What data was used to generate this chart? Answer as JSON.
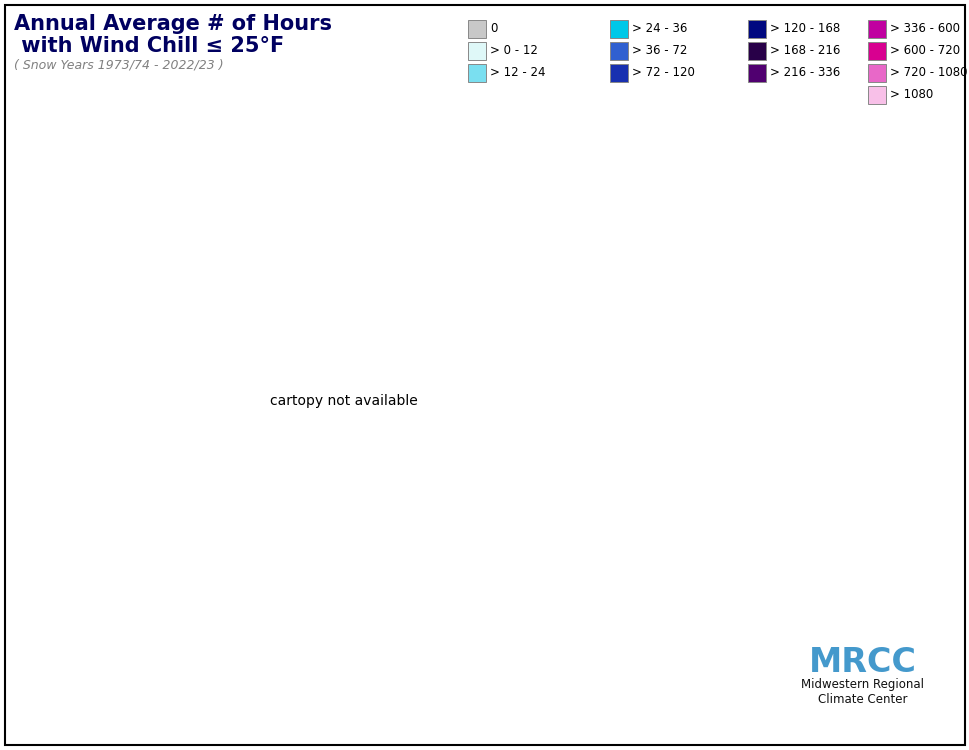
{
  "title_line1": "Annual Average # of Hours",
  "title_line2": " with Wind Chill ≤ 25°F",
  "title_sub": "( Snow Years 1973/74 - 2022/23 )",
  "legend_items": [
    {
      "label": "0",
      "color": "#c8c8c8"
    },
    {
      "label": "> 0 - 12",
      "color": "#dff8f8"
    },
    {
      "label": "> 12 - 24",
      "color": "#7adff0"
    },
    {
      "label": "> 24 - 36",
      "color": "#00c8e8"
    },
    {
      "label": "> 36 - 72",
      "color": "#3060d0"
    },
    {
      "label": "> 72 - 120",
      "color": "#1830b0"
    },
    {
      "label": "> 120 - 168",
      "color": "#000880"
    },
    {
      "label": "> 168 - 216",
      "color": "#280048"
    },
    {
      "label": "> 216 - 336",
      "color": "#500070"
    },
    {
      "label": "> 336 - 600",
      "color": "#c000a0"
    },
    {
      "label": "> 600 - 720",
      "color": "#d80090"
    },
    {
      "label": "> 720 - 1080",
      "color": "#e868c8"
    },
    {
      "label": "> 1080",
      "color": "#f8c0e8"
    }
  ],
  "bounds": [
    0,
    0.1,
    12,
    24,
    36,
    72,
    120,
    168,
    216,
    336,
    600,
    720,
    1080,
    3000
  ],
  "contour_colors": [
    "#c8c8c8",
    "#dff8f8",
    "#7adff0",
    "#00c8e8",
    "#3060d0",
    "#1830b0",
    "#000880",
    "#280048",
    "#500070",
    "#c000a0",
    "#d80090",
    "#e868c8",
    "#f8c0e8"
  ],
  "background_color": "#ffffff",
  "title_color": "#000060"
}
